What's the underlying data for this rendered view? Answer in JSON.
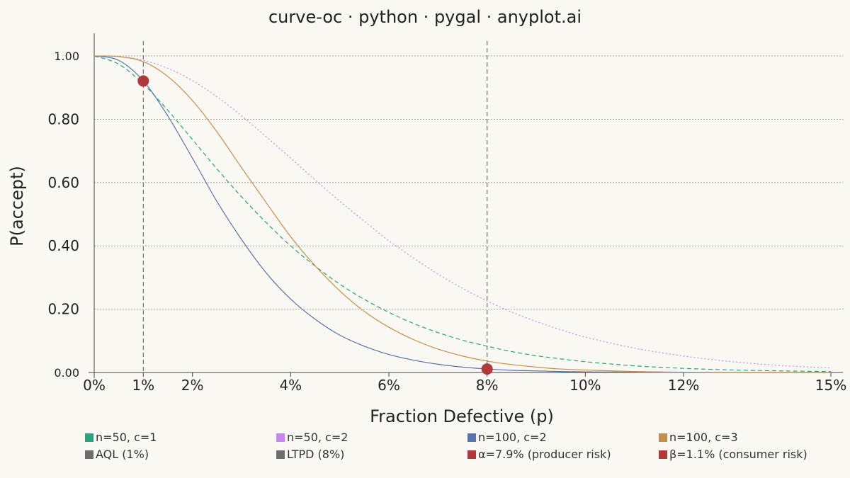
{
  "chart_data": {
    "type": "line",
    "title": "curve-oc · python · pygal · anyplot.ai",
    "xlabel": "Fraction Defective (p)",
    "ylabel": "P(accept)",
    "xlim": [
      0,
      0.15
    ],
    "ylim": [
      0,
      1.0
    ],
    "x_ticks": [
      {
        "value": 0.0,
        "label": "0%"
      },
      {
        "value": 0.01,
        "label": "1%"
      },
      {
        "value": 0.02,
        "label": "2%"
      },
      {
        "value": 0.04,
        "label": "4%"
      },
      {
        "value": 0.06,
        "label": "6%"
      },
      {
        "value": 0.08,
        "label": "8%"
      },
      {
        "value": 0.1,
        "label": "10%"
      },
      {
        "value": 0.12,
        "label": "12%"
      },
      {
        "value": 0.15,
        "label": "15%"
      }
    ],
    "y_ticks": [
      {
        "value": 0.0,
        "label": "0.00"
      },
      {
        "value": 0.2,
        "label": "0.20"
      },
      {
        "value": 0.4,
        "label": "0.40"
      },
      {
        "value": 0.6,
        "label": "0.60"
      },
      {
        "value": 0.8,
        "label": "0.80"
      },
      {
        "value": 1.0,
        "label": "1.00"
      }
    ],
    "grid": true,
    "legend_position": "bottom",
    "x": [
      0,
      0.005,
      0.01,
      0.015,
      0.02,
      0.025,
      0.03,
      0.035,
      0.04,
      0.045,
      0.05,
      0.055,
      0.06,
      0.065,
      0.07,
      0.075,
      0.08,
      0.085,
      0.09,
      0.095,
      0.1,
      0.11,
      0.12,
      0.13,
      0.14,
      0.15
    ],
    "series": [
      {
        "name": "n=50, c=1",
        "color": "#2AA37E",
        "dash": "6,4",
        "values": [
          1.0,
          0.974,
          0.911,
          0.828,
          0.736,
          0.643,
          0.555,
          0.474,
          0.4,
          0.336,
          0.279,
          0.231,
          0.19,
          0.155,
          0.126,
          0.102,
          0.083,
          0.066,
          0.053,
          0.043,
          0.034,
          0.021,
          0.013,
          0.008,
          0.005,
          0.003
        ]
      },
      {
        "name": "n=50, c=2",
        "color": "#C987EE",
        "dash": "2,3",
        "values": [
          1.0,
          0.998,
          0.986,
          0.961,
          0.922,
          0.871,
          0.811,
          0.745,
          0.677,
          0.608,
          0.541,
          0.478,
          0.416,
          0.362,
          0.311,
          0.266,
          0.226,
          0.191,
          0.161,
          0.135,
          0.112,
          0.077,
          0.052,
          0.034,
          0.022,
          0.014
        ]
      },
      {
        "name": "n=100, c=2",
        "color": "#5A73A8",
        "dash": "",
        "values": [
          1.0,
          0.986,
          0.921,
          0.81,
          0.677,
          0.54,
          0.42,
          0.315,
          0.232,
          0.168,
          0.118,
          0.083,
          0.057,
          0.039,
          0.026,
          0.017,
          0.011,
          0.007,
          0.005,
          0.003,
          0.002,
          0.001,
          0.0,
          0.0,
          0.0,
          0.0
        ]
      },
      {
        "name": "n=100, c=3",
        "color": "#C58E4E",
        "dash": "",
        "values": [
          1.0,
          0.998,
          0.982,
          0.935,
          0.859,
          0.76,
          0.647,
          0.537,
          0.429,
          0.337,
          0.258,
          0.193,
          0.143,
          0.104,
          0.074,
          0.052,
          0.036,
          0.025,
          0.017,
          0.011,
          0.008,
          0.003,
          0.001,
          0.0,
          0.0,
          0.0
        ]
      }
    ],
    "reference_lines": [
      {
        "name": "AQL (1%)",
        "x": 0.01,
        "color": "#6E6E6E"
      },
      {
        "name": "LTPD (8%)",
        "x": 0.08,
        "color": "#6E6E6E"
      }
    ],
    "markers": [
      {
        "name": "α=7.9% (producer risk)",
        "x": 0.01,
        "y": 0.921,
        "color": "#B03A3A"
      },
      {
        "name": "β=1.1% (consumer risk)",
        "x": 0.08,
        "y": 0.011,
        "color": "#B03A3A"
      }
    ],
    "legend": [
      {
        "label": "n=50, c=1",
        "color": "#2AA37E"
      },
      {
        "label": "n=50, c=2",
        "color": "#C987EE"
      },
      {
        "label": "n=100, c=2",
        "color": "#5A73A8"
      },
      {
        "label": "n=100, c=3",
        "color": "#C58E4E"
      },
      {
        "label": "AQL (1%)",
        "color": "#6E6E6E"
      },
      {
        "label": "LTPD (8%)",
        "color": "#6E6E6E"
      },
      {
        "label": "α=7.9% (producer risk)",
        "color": "#B03A3A"
      },
      {
        "label": "β=1.1% (consumer risk)",
        "color": "#B03A3A"
      }
    ]
  }
}
